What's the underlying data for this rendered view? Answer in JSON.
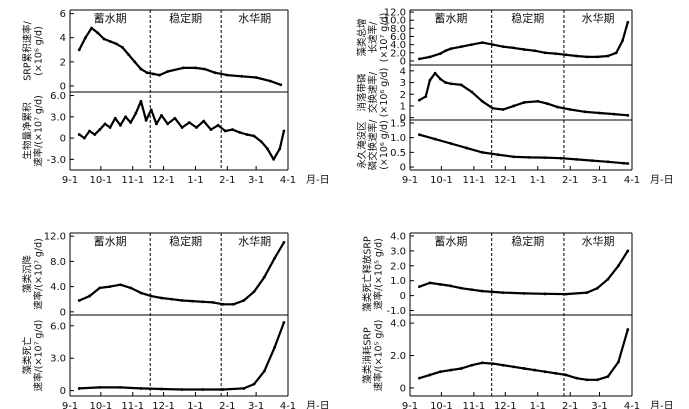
{
  "date_axis": {
    "ticks": [
      "9-1",
      "10-1",
      "11-1",
      "12-1",
      "1-1",
      "2-1",
      "3-1",
      "4-1"
    ],
    "unit_label": "月-日"
  },
  "period_labels": [
    "蓄水期",
    "稳定期",
    "水华期"
  ],
  "period_boundaries": [
    "11-18",
    "1-26"
  ],
  "chart_data": [
    {
      "type": "line",
      "ylabel": [
        "SRP累积速率/",
        "(×10⁶ g/d)"
      ],
      "yticks": [
        "0",
        "2",
        "4",
        "6"
      ],
      "ylim": [
        -0.5,
        6.3
      ],
      "grid": false,
      "series": [
        {
          "x": [
            "9-10",
            "9-16",
            "9-22",
            "9-28",
            "10-4",
            "10-10",
            "10-16",
            "10-22",
            "10-28",
            "11-3",
            "11-9",
            "11-15",
            "11-21",
            "11-27",
            "12-5",
            "12-20",
            "1-1",
            "1-10",
            "1-20",
            "2-1",
            "2-15",
            "3-1",
            "3-15",
            "3-25"
          ],
          "y": [
            3.0,
            4.0,
            4.8,
            4.4,
            3.9,
            3.7,
            3.5,
            3.2,
            2.6,
            2.0,
            1.4,
            1.1,
            1.0,
            0.9,
            1.2,
            1.5,
            1.5,
            1.4,
            1.1,
            0.9,
            0.8,
            0.7,
            0.4,
            0.1
          ]
        }
      ]
    },
    {
      "type": "line",
      "ylabel": [
        "生物量净累积",
        "速率/(×10⁷ g/d)"
      ],
      "yticks": [
        "-3.0",
        "0",
        "3.0",
        "6.0"
      ],
      "ylim": [
        -4.5,
        6.5
      ],
      "grid": false,
      "series": [
        {
          "x": [
            "9-10",
            "9-15",
            "9-20",
            "9-25",
            "9-30",
            "10-5",
            "10-10",
            "10-15",
            "10-20",
            "10-25",
            "10-30",
            "11-4",
            "11-9",
            "11-14",
            "11-19",
            "11-24",
            "11-29",
            "12-5",
            "12-12",
            "12-19",
            "12-26",
            "1-2",
            "1-9",
            "1-16",
            "1-23",
            "1-30",
            "2-6",
            "2-13",
            "2-20",
            "2-27",
            "3-6",
            "3-12",
            "3-18",
            "3-24",
            "3-28"
          ],
          "y": [
            0.5,
            0.0,
            1.0,
            0.5,
            1.2,
            2.0,
            1.5,
            2.8,
            1.8,
            3.0,
            2.2,
            3.5,
            5.2,
            2.5,
            4.0,
            2.0,
            3.2,
            2.0,
            2.8,
            1.5,
            2.2,
            1.5,
            2.4,
            1.2,
            1.8,
            1.0,
            1.2,
            0.8,
            0.5,
            0.3,
            -0.5,
            -1.5,
            -3.0,
            -1.5,
            1.0
          ]
        }
      ]
    },
    {
      "type": "line",
      "ylabel": [
        "藻类总增",
        "长速率/",
        "(×10⁷ g/d)"
      ],
      "yticks": [
        "0",
        "2.0",
        "4.0",
        "6.0",
        "8.0",
        "10.0",
        "12.0"
      ],
      "ylim": [
        -1,
        12.5
      ],
      "grid": false,
      "series": [
        {
          "x": [
            "9-10",
            "9-20",
            "9-30",
            "10-5",
            "10-10",
            "10-20",
            "10-30",
            "11-9",
            "11-19",
            "11-29",
            "12-9",
            "12-19",
            "12-29",
            "1-8",
            "1-18",
            "1-28",
            "2-7",
            "2-17",
            "2-27",
            "3-9",
            "3-17",
            "3-23",
            "3-28"
          ],
          "y": [
            0.5,
            1.0,
            1.8,
            2.5,
            3.0,
            3.5,
            4.0,
            4.5,
            4.0,
            3.5,
            3.2,
            2.8,
            2.5,
            2.0,
            1.8,
            1.5,
            1.2,
            1.0,
            1.0,
            1.2,
            2.0,
            5.0,
            9.5
          ]
        }
      ]
    },
    {
      "type": "line",
      "ylabel": [
        "消落带磷",
        "交换速率/",
        "(×10⁶ g/d)"
      ],
      "yticks": [
        "0",
        "1",
        "2",
        "3",
        "4"
      ],
      "ylim": [
        -0.2,
        4.5
      ],
      "grid": false,
      "series": [
        {
          "x": [
            "9-10",
            "9-16",
            "9-20",
            "9-25",
            "9-30",
            "10-5",
            "10-10",
            "10-20",
            "10-30",
            "11-9",
            "11-19",
            "11-29",
            "12-9",
            "12-19",
            "1-1",
            "1-10",
            "1-20",
            "2-1",
            "2-15",
            "3-1",
            "3-15",
            "3-28"
          ],
          "y": [
            1.5,
            1.8,
            3.2,
            3.8,
            3.3,
            3.0,
            2.9,
            2.8,
            2.2,
            1.4,
            0.8,
            0.7,
            1.0,
            1.3,
            1.4,
            1.2,
            0.9,
            0.7,
            0.5,
            0.4,
            0.3,
            0.2
          ]
        }
      ]
    },
    {
      "type": "line",
      "ylabel": [
        "永久淹没区",
        "磷交换速率/",
        "(×10⁶ g/d)"
      ],
      "yticks": [
        "0",
        "0.5",
        "1.0",
        "1.5"
      ],
      "ylim": [
        -0.1,
        1.6
      ],
      "grid": false,
      "series": [
        {
          "x": [
            "9-10",
            "9-25",
            "10-10",
            "10-25",
            "11-9",
            "11-24",
            "12-9",
            "12-24",
            "1-8",
            "1-23",
            "2-7",
            "2-22",
            "3-9",
            "3-24",
            "3-28"
          ],
          "y": [
            1.1,
            0.95,
            0.8,
            0.65,
            0.5,
            0.42,
            0.35,
            0.33,
            0.32,
            0.3,
            0.26,
            0.22,
            0.18,
            0.13,
            0.12
          ]
        }
      ]
    },
    {
      "type": "line",
      "ylabel": [
        "藻类沉降",
        "速率/(×10⁷ g/d)"
      ],
      "yticks": [
        "0",
        "4.0",
        "8.0",
        "12.0"
      ],
      "ylim": [
        -0.5,
        12.5
      ],
      "grid": false,
      "series": [
        {
          "x": [
            "9-10",
            "9-20",
            "9-30",
            "10-10",
            "10-20",
            "10-30",
            "11-9",
            "11-19",
            "11-29",
            "12-9",
            "12-19",
            "12-29",
            "1-8",
            "1-18",
            "1-28",
            "2-7",
            "2-17",
            "2-27",
            "3-9",
            "3-19",
            "3-28"
          ],
          "y": [
            1.8,
            2.5,
            3.8,
            4.0,
            4.3,
            3.8,
            3.0,
            2.5,
            2.2,
            2.0,
            1.8,
            1.7,
            1.6,
            1.5,
            1.2,
            1.2,
            1.8,
            3.2,
            5.5,
            8.5,
            11.0
          ]
        }
      ]
    },
    {
      "type": "line",
      "ylabel": [
        "藻类死亡",
        "速率/(×10⁷ g/d)"
      ],
      "yticks": [
        "0",
        "3.0",
        "6.0"
      ],
      "ylim": [
        -0.5,
        7.0
      ],
      "grid": false,
      "series": [
        {
          "x": [
            "9-10",
            "9-30",
            "10-20",
            "11-9",
            "11-29",
            "12-19",
            "1-8",
            "1-28",
            "2-17",
            "2-27",
            "3-9",
            "3-19",
            "3-28"
          ],
          "y": [
            0.2,
            0.3,
            0.3,
            0.2,
            0.15,
            0.1,
            0.1,
            0.1,
            0.2,
            0.6,
            1.8,
            4.0,
            6.3
          ]
        }
      ]
    },
    {
      "type": "line",
      "ylabel": [
        "藻类死亡释放SRP",
        "速率/(×10⁵ g/d)"
      ],
      "yticks": [
        "-1.0",
        "0",
        "1.0",
        "2.0",
        "3.0",
        "4.0"
      ],
      "ylim": [
        -1.3,
        4.2
      ],
      "grid": false,
      "series": [
        {
          "x": [
            "9-10",
            "9-20",
            "9-30",
            "10-10",
            "10-20",
            "10-30",
            "11-9",
            "11-19",
            "11-29",
            "12-19",
            "1-8",
            "1-28",
            "2-17",
            "2-27",
            "3-9",
            "3-19",
            "3-28"
          ],
          "y": [
            0.6,
            0.85,
            0.75,
            0.65,
            0.5,
            0.4,
            0.3,
            0.25,
            0.2,
            0.15,
            0.12,
            0.1,
            0.2,
            0.5,
            1.1,
            2.0,
            3.0
          ]
        }
      ]
    },
    {
      "type": "line",
      "ylabel": [
        "藻类消耗SRP",
        "速率/(×10⁵ g/d)"
      ],
      "yticks": [
        "0",
        "2.0",
        "4.0"
      ],
      "ylim": [
        -0.5,
        4.5
      ],
      "grid": false,
      "series": [
        {
          "x": [
            "9-10",
            "9-20",
            "9-30",
            "10-10",
            "10-20",
            "10-30",
            "11-9",
            "11-19",
            "11-29",
            "12-9",
            "12-19",
            "12-29",
            "1-8",
            "1-18",
            "1-28",
            "2-7",
            "2-17",
            "2-27",
            "3-9",
            "3-19",
            "3-28"
          ],
          "y": [
            0.6,
            0.8,
            1.0,
            1.1,
            1.2,
            1.4,
            1.55,
            1.5,
            1.4,
            1.3,
            1.2,
            1.1,
            1.0,
            0.9,
            0.8,
            0.6,
            0.5,
            0.5,
            0.7,
            1.6,
            3.6
          ]
        }
      ]
    }
  ]
}
